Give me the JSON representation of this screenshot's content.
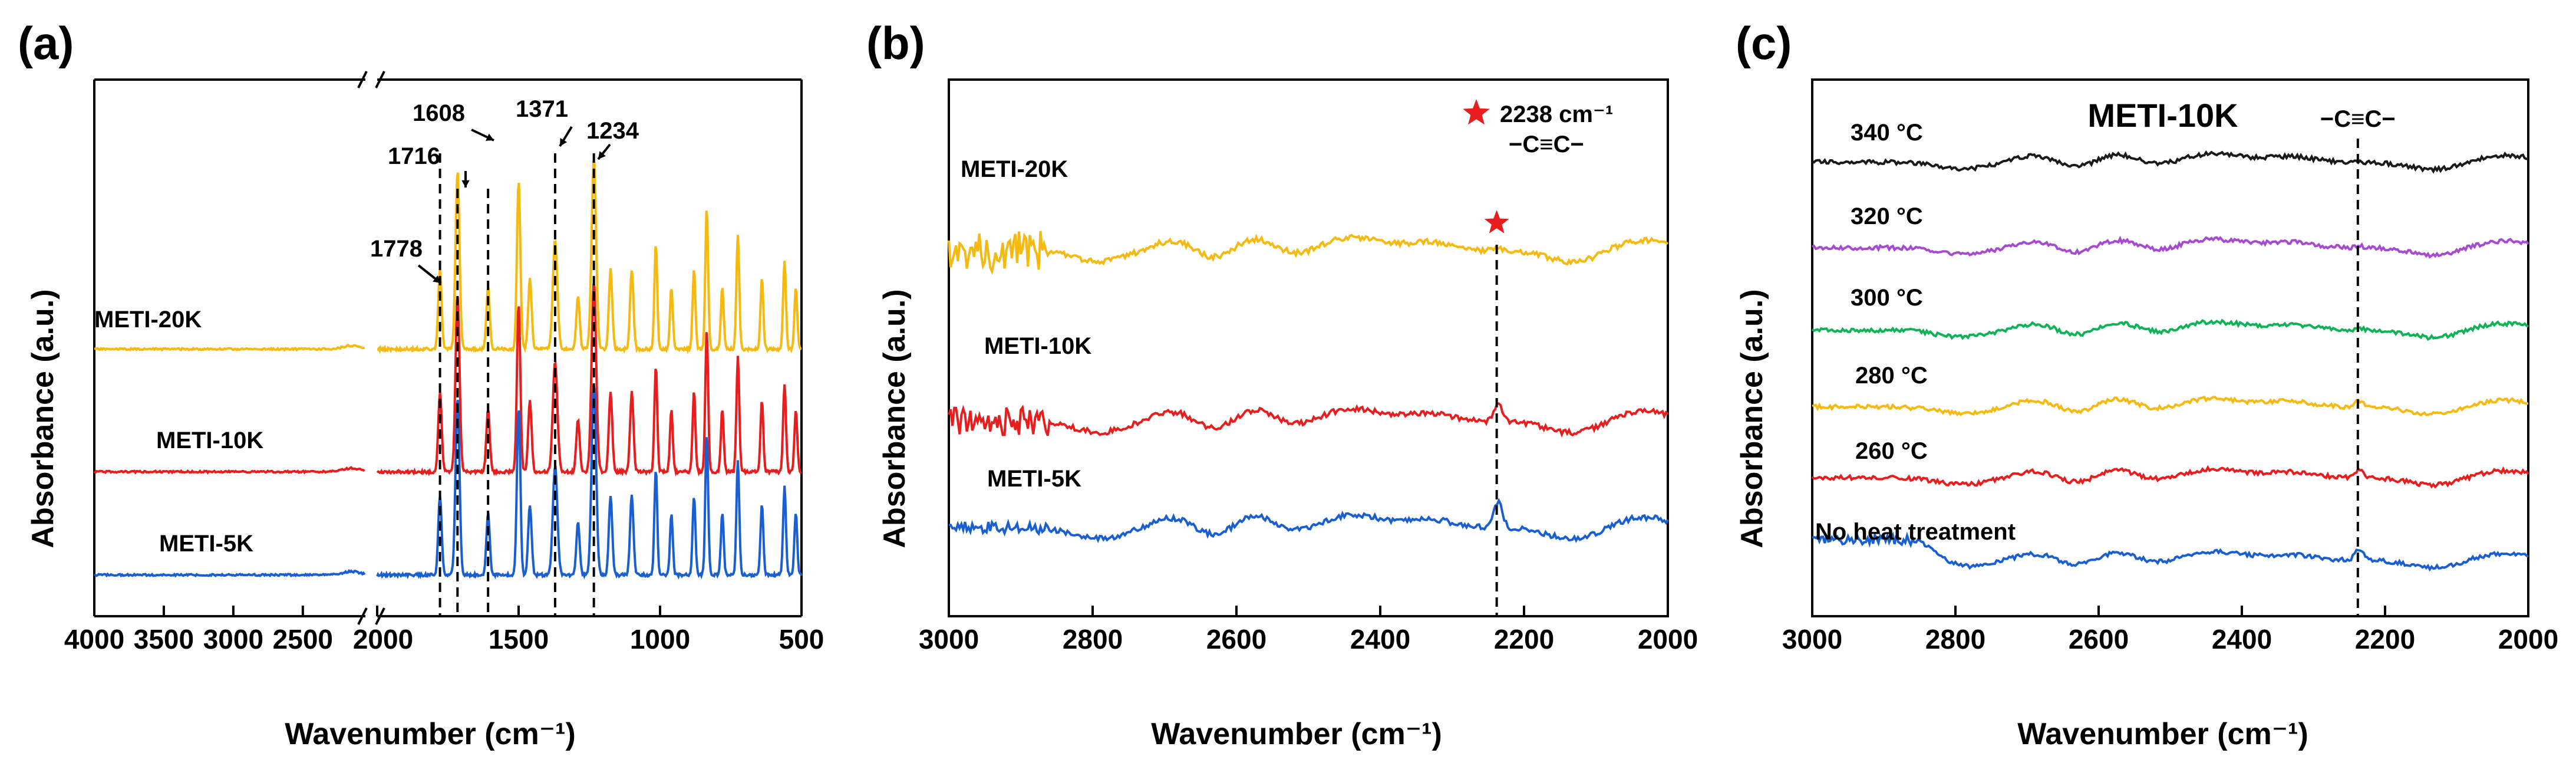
{
  "colors": {
    "METI-20K": "#f5b90f",
    "METI-10K": "#e81d1d",
    "METI-5K": "#1a5fd1",
    "340 °C": "#1a1a1a",
    "320 °C": "#a64bd1",
    "300 °C": "#10b257",
    "280 °C": "#f5b90f",
    "260 °C": "#e81d1d",
    "No heat treatment": "#1a5fd1",
    "star": "#e81d1d"
  },
  "chart_data": [
    {
      "id": "a",
      "type": "line",
      "panel_label": "(a)",
      "xlabel": "Wavenumber (cm⁻¹)",
      "ylabel": "Absorbance (a.u.)",
      "x_axis_broken": true,
      "x_segments": [
        [
          4000,
          2050
        ],
        [
          2000,
          500
        ]
      ],
      "x_ticks": [
        4000,
        3500,
        3000,
        2500,
        2000,
        1500,
        1000,
        500
      ],
      "x_tick_labels": [
        "4000",
        "3500",
        "3000",
        "2500",
        "2000",
        "1500",
        "1000",
        "500"
      ],
      "series": [
        {
          "name": "METI-20K",
          "color_key": "METI-20K"
        },
        {
          "name": "METI-10K",
          "color_key": "METI-10K"
        },
        {
          "name": "METI-5K",
          "color_key": "METI-5K"
        }
      ],
      "peaks": [
        {
          "x": 1778,
          "label": "1778"
        },
        {
          "x": 1716,
          "label": "1716"
        },
        {
          "x": 1608,
          "label": "1608"
        },
        {
          "x": 1371,
          "label": "1371"
        },
        {
          "x": 1234,
          "label": "1234"
        }
      ]
    },
    {
      "id": "b",
      "type": "line",
      "panel_label": "(b)",
      "xlabel": "Wavenumber (cm⁻¹)",
      "ylabel": "Absorbance (a.u.)",
      "xlim": [
        3000,
        2000
      ],
      "x_ticks": [
        3000,
        2800,
        2600,
        2400,
        2200,
        2000
      ],
      "x_tick_labels": [
        "3000",
        "2800",
        "2600",
        "2400",
        "2200",
        "2000"
      ],
      "series": [
        {
          "name": "METI-20K",
          "color_key": "METI-20K"
        },
        {
          "name": "METI-10K",
          "color_key": "METI-10K"
        },
        {
          "name": "METI-5K",
          "color_key": "METI-5K"
        }
      ],
      "marker_line_x": 2238,
      "annotation": "2238 cm⁻¹",
      "annotation_sub": "−C≡C−"
    },
    {
      "id": "c",
      "type": "line",
      "panel_label": "(c)",
      "title": "METI-10K",
      "xlabel": "Wavenumber (cm⁻¹)",
      "ylabel": "Absorbance (a.u.)",
      "xlim": [
        3000,
        2000
      ],
      "x_ticks": [
        3000,
        2800,
        2600,
        2400,
        2200,
        2000
      ],
      "x_tick_labels": [
        "3000",
        "2800",
        "2600",
        "2400",
        "2200",
        "2000"
      ],
      "series": [
        {
          "name": "340 °C",
          "color_key": "340 °C"
        },
        {
          "name": "320 °C",
          "color_key": "320 °C"
        },
        {
          "name": "300 °C",
          "color_key": "300 °C"
        },
        {
          "name": "280 °C",
          "color_key": "280 °C"
        },
        {
          "name": "260 °C",
          "color_key": "260 °C"
        },
        {
          "name": "No heat treatment",
          "color_key": "No heat treatment"
        }
      ],
      "marker_line_x": 2238,
      "annotation": "−C≡C−"
    }
  ]
}
